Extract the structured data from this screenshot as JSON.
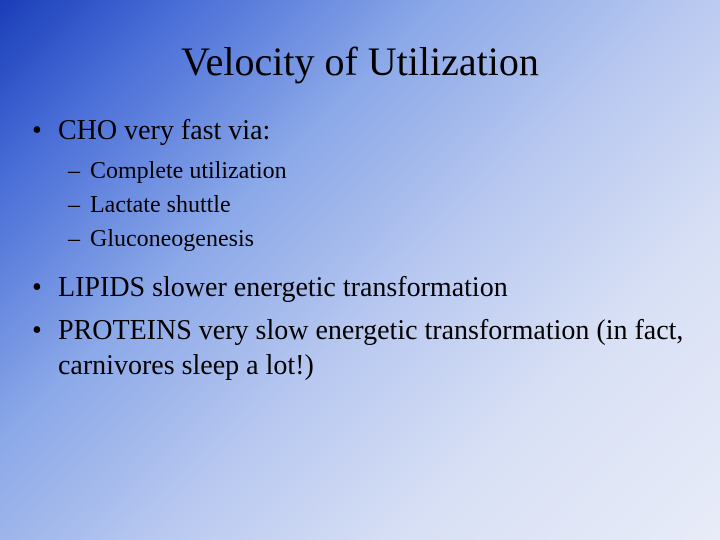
{
  "slide": {
    "title": "Velocity of Utilization",
    "background_gradient": [
      "#1a3db8",
      "#4a6fd8",
      "#8ba8e8",
      "#b8c8f0",
      "#d8e0f5",
      "#e8ecf8"
    ],
    "text_color": "#000000",
    "font_family": "Times New Roman",
    "title_fontsize": 40,
    "body_fontsize": 28,
    "sub_fontsize": 24,
    "bullets": [
      {
        "level": 1,
        "text": "CHO very fast via:",
        "children": [
          {
            "level": 2,
            "text": "Complete utilization"
          },
          {
            "level": 2,
            "text": "Lactate shuttle"
          },
          {
            "level": 2,
            "text": "Gluconeogenesis"
          }
        ]
      },
      {
        "level": 1,
        "text": "LIPIDS slower energetic transformation"
      },
      {
        "level": 1,
        "text": "PROTEINS very slow energetic transformation (in fact, carnivores sleep a lot!)"
      }
    ]
  }
}
